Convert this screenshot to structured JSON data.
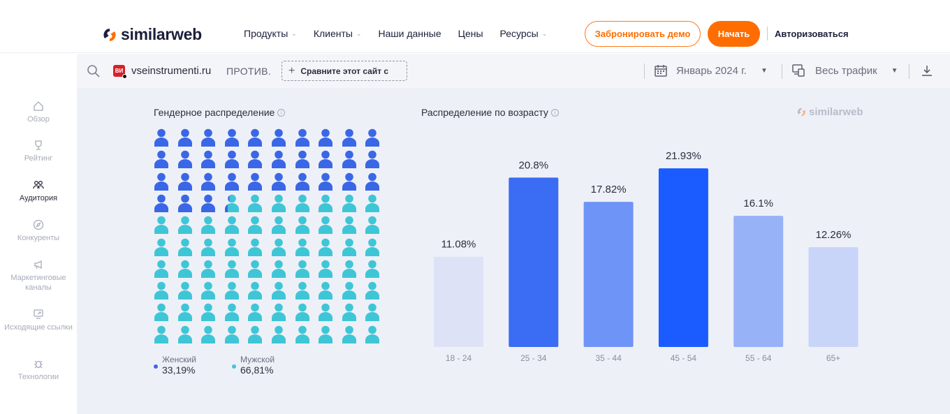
{
  "nav": {
    "brand": "similarweb",
    "menu": [
      {
        "label": "Продукты",
        "has_dropdown": true
      },
      {
        "label": "Клиенты",
        "has_dropdown": true
      },
      {
        "label": "Наши данные",
        "has_dropdown": false
      },
      {
        "label": "Цены",
        "has_dropdown": false
      },
      {
        "label": "Ресурсы",
        "has_dropdown": true
      }
    ],
    "demo_button": "Забронировать демо",
    "start_button": "Начать",
    "login": "Авторизоваться",
    "accent_color": "#ff6d00"
  },
  "toolbar": {
    "favicon_text": "ВИ",
    "domain": "vseinstrumenti.ru",
    "versus": "ПРОТИВ.",
    "compare": "Сравните этот сайт с",
    "date": "Январь 2024 г.",
    "traffic": "Весь трафик"
  },
  "sidebar": {
    "items": [
      {
        "label": "Обзор",
        "icon": "home-icon",
        "active": false
      },
      {
        "label": "Рейтинг",
        "icon": "trophy-icon",
        "active": false
      },
      {
        "label": "Аудитория",
        "icon": "audience-icon",
        "active": true
      },
      {
        "label": "Конкуренты",
        "icon": "compass-icon",
        "active": false
      },
      {
        "label": "Маркетинговые каналы",
        "icon": "megaphone-icon",
        "active": false
      },
      {
        "label": "Исходящие ссылки",
        "icon": "outgoing-link-icon",
        "active": false
      },
      {
        "label": "Технологии",
        "icon": "bug-icon",
        "active": false
      }
    ]
  },
  "gender": {
    "title": "Гендерное распределение",
    "female": {
      "label": "Женский",
      "value": "33,19%",
      "share": 33.19,
      "color": "#3a67e6"
    },
    "male": {
      "label": "Мужской",
      "value": "66,81%",
      "share": 66.81,
      "color": "#3fc6d6"
    }
  },
  "age": {
    "title": "Распределение по возрасту",
    "watermark": "similarweb"
  },
  "chart_data": {
    "type": "bar",
    "categories": [
      "18 - 24",
      "25 - 34",
      "35 - 44",
      "45 - 54",
      "55 - 64",
      "65+"
    ],
    "values": [
      11.08,
      20.8,
      17.82,
      21.93,
      16.1,
      12.26
    ],
    "data_labels": [
      "11.08%",
      "20.8%",
      "17.82%",
      "21.93%",
      "16.1%",
      "12.26%"
    ],
    "bar_colors": [
      "#dde2f7",
      "#3a6cf4",
      "#6f94f7",
      "#1a5cff",
      "#98b2f8",
      "#c9d4f9"
    ],
    "title": "Распределение по возрасту",
    "ylim": [
      0,
      24
    ],
    "grid": false
  }
}
